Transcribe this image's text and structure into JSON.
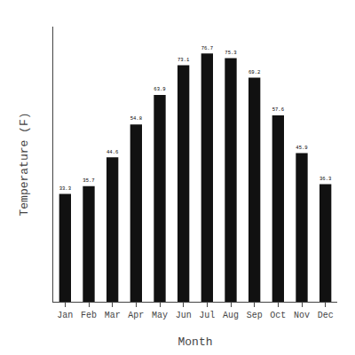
{
  "chart_data": {
    "type": "bar",
    "xlabel": "Month",
    "ylabel": "Temperature (F)",
    "categories": [
      "Jan",
      "Feb",
      "Mar",
      "Apr",
      "May",
      "Jun",
      "Jul",
      "Aug",
      "Sep",
      "Oct",
      "Nov",
      "Dec"
    ],
    "values": [
      33.3,
      35.7,
      44.6,
      54.8,
      63.9,
      73.1,
      76.7,
      75.3,
      69.2,
      57.6,
      45.9,
      36.3
    ],
    "color": "#111111",
    "ylim": [
      0,
      85
    ],
    "yticks": [],
    "grid": false,
    "data_labels": true,
    "tick_labels": "x"
  }
}
